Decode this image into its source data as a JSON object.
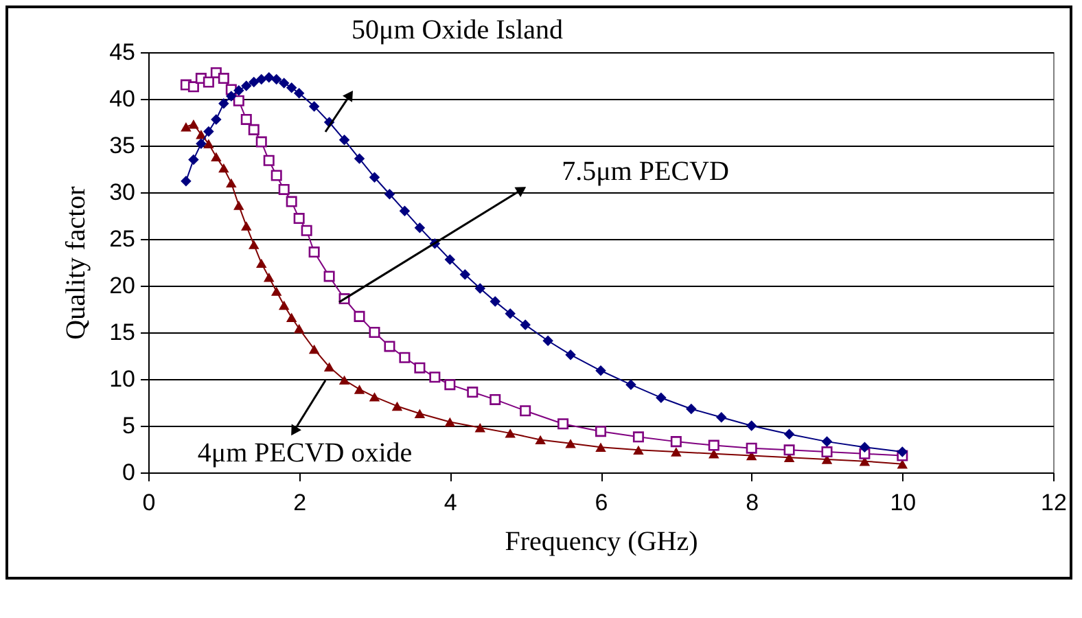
{
  "chart_data": {
    "type": "line",
    "xlabel": "Frequency (GHz)",
    "ylabel": "Quality factor",
    "xlim": [
      0,
      12
    ],
    "xticks": [
      0,
      2,
      4,
      6,
      8,
      10,
      12
    ],
    "ylim": [
      0,
      45
    ],
    "yticks": [
      0,
      5,
      10,
      15,
      20,
      25,
      30,
      35,
      40,
      45
    ],
    "grid": "y",
    "series": [
      {
        "color": "#000080",
        "marker": "diamond",
        "x": [
          0.5,
          0.6,
          0.7,
          0.8,
          0.9,
          1.0,
          1.1,
          1.2,
          1.3,
          1.4,
          1.5,
          1.6,
          1.7,
          1.8,
          1.9,
          2.0,
          2.2,
          2.4,
          2.6,
          2.8,
          3.0,
          3.2,
          3.4,
          3.6,
          3.8,
          4.0,
          4.2,
          4.4,
          4.6,
          4.8,
          5.0,
          5.3,
          5.6,
          6.0,
          6.4,
          6.8,
          7.2,
          7.6,
          8.0,
          8.5,
          9.0,
          9.5,
          10
        ],
        "values": [
          31.2,
          33.5,
          35.2,
          36.5,
          37.8,
          39.5,
          40.3,
          40.9,
          41.4,
          41.8,
          42.1,
          42.3,
          42.1,
          41.7,
          41.2,
          40.6,
          39.2,
          37.5,
          35.6,
          33.6,
          31.6,
          29.8,
          28,
          26.2,
          24.5,
          22.8,
          21.2,
          19.7,
          18.3,
          17.0,
          15.8,
          14.1,
          12.6,
          10.9,
          9.4,
          8.0,
          6.8,
          5.9,
          5.0,
          4.1,
          3.3,
          2.7,
          2.2
        ]
      },
      {
        "color": "#800080",
        "marker": "square",
        "x": [
          0.5,
          0.6,
          0.7,
          0.8,
          0.9,
          1.0,
          1.1,
          1.2,
          1.3,
          1.4,
          1.5,
          1.6,
          1.7,
          1.8,
          1.9,
          2.0,
          2.1,
          2.2,
          2.4,
          2.6,
          2.8,
          3.0,
          3.2,
          3.4,
          3.6,
          3.8,
          4.0,
          4.3,
          4.6,
          5.0,
          5.5,
          6.0,
          6.5,
          7.0,
          7.5,
          8.0,
          8.5,
          9.0,
          9.5,
          10
        ],
        "values": [
          41.5,
          41.3,
          42.2,
          41.8,
          42.8,
          42.2,
          41.0,
          39.8,
          37.8,
          36.7,
          35.4,
          33.4,
          31.8,
          30.3,
          29.0,
          27.2,
          25.9,
          23.6,
          21.0,
          18.6,
          16.7,
          15.0,
          13.5,
          12.3,
          11.2,
          10.2,
          9.4,
          8.6,
          7.8,
          6.6,
          5.2,
          4.4,
          3.8,
          3.3,
          2.9,
          2.6,
          2.4,
          2.2,
          2.0,
          1.8
        ]
      },
      {
        "color": "#800000",
        "marker": "triangle",
        "x": [
          0.5,
          0.6,
          0.7,
          0.8,
          0.9,
          1.0,
          1.1,
          1.2,
          1.3,
          1.4,
          1.5,
          1.6,
          1.7,
          1.8,
          1.9,
          2.0,
          2.2,
          2.4,
          2.6,
          2.8,
          3.0,
          3.3,
          3.6,
          4.0,
          4.4,
          4.8,
          5.2,
          5.6,
          6.0,
          6.5,
          7.0,
          7.5,
          8.0,
          8.5,
          9.0,
          9.5,
          10
        ],
        "values": [
          37,
          37.3,
          36.2,
          35.2,
          33.8,
          32.6,
          31,
          28.6,
          26.4,
          24.4,
          22.4,
          20.9,
          19.4,
          17.9,
          16.6,
          15.4,
          13.2,
          11.3,
          9.9,
          8.9,
          8.1,
          7.1,
          6.3,
          5.4,
          4.8,
          4.2,
          3.5,
          3.1,
          2.7,
          2.4,
          2.2,
          2.0,
          1.8,
          1.6,
          1.4,
          1.2,
          0.9
        ]
      }
    ],
    "annotations": [
      "50μm Oxide Island",
      "7.5μm PECVD",
      "4μm PECVD oxide"
    ]
  }
}
